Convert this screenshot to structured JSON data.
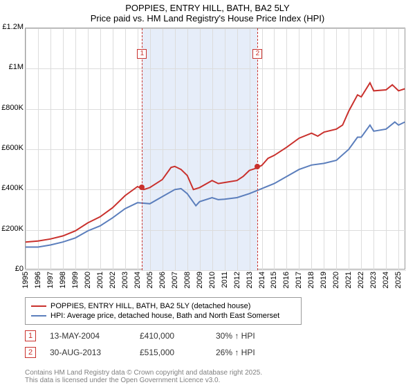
{
  "title": {
    "line1": "POPPIES, ENTRY HILL, BATH, BA2 5LY",
    "line2": "Price paid vs. HM Land Registry's House Price Index (HPI)"
  },
  "chart": {
    "type": "line",
    "x_range": [
      1995,
      2025.6
    ],
    "y_range": [
      0,
      1200000
    ],
    "y_ticks": [
      0,
      200000,
      400000,
      600000,
      800000,
      1000000,
      1200000
    ],
    "y_tick_labels": [
      "£0",
      "£200K",
      "£400K",
      "£600K",
      "£800K",
      "£1M",
      "£1.2M"
    ],
    "x_ticks": [
      1995,
      1996,
      1997,
      1998,
      1999,
      2000,
      2001,
      2002,
      2003,
      2004,
      2005,
      2006,
      2007,
      2008,
      2009,
      2010,
      2011,
      2012,
      2013,
      2014,
      2015,
      2016,
      2017,
      2018,
      2019,
      2020,
      2021,
      2022,
      2023,
      2024,
      2025
    ],
    "gridline_color": "#dcdcdc",
    "background_color": "#ffffff",
    "shade_color": "#e6edf9",
    "shade_span": [
      2004.37,
      2013.66
    ],
    "series": [
      {
        "name": "property",
        "color": "#c9302c",
        "width": 2,
        "points": [
          [
            1995,
            140000
          ],
          [
            1996,
            145000
          ],
          [
            1997,
            155000
          ],
          [
            1998,
            170000
          ],
          [
            1999,
            195000
          ],
          [
            2000,
            235000
          ],
          [
            2001,
            265000
          ],
          [
            2002,
            310000
          ],
          [
            2003,
            370000
          ],
          [
            2004,
            415000
          ],
          [
            2004.5,
            400000
          ],
          [
            2005,
            410000
          ],
          [
            2006,
            450000
          ],
          [
            2006.7,
            510000
          ],
          [
            2007,
            515000
          ],
          [
            2007.5,
            500000
          ],
          [
            2008,
            470000
          ],
          [
            2008.5,
            400000
          ],
          [
            2009,
            410000
          ],
          [
            2010,
            445000
          ],
          [
            2010.5,
            430000
          ],
          [
            2011,
            435000
          ],
          [
            2012,
            445000
          ],
          [
            2012.5,
            465000
          ],
          [
            2013,
            495000
          ],
          [
            2013.5,
            505000
          ],
          [
            2014,
            520000
          ],
          [
            2014.5,
            555000
          ],
          [
            2015,
            570000
          ],
          [
            2016,
            610000
          ],
          [
            2017,
            655000
          ],
          [
            2018,
            680000
          ],
          [
            2018.5,
            665000
          ],
          [
            2019,
            685000
          ],
          [
            2020,
            700000
          ],
          [
            2020.5,
            720000
          ],
          [
            2021,
            790000
          ],
          [
            2021.7,
            870000
          ],
          [
            2022,
            860000
          ],
          [
            2022.7,
            930000
          ],
          [
            2023,
            890000
          ],
          [
            2024,
            895000
          ],
          [
            2024.5,
            920000
          ],
          [
            2025,
            890000
          ],
          [
            2025.5,
            900000
          ]
        ]
      },
      {
        "name": "hpi",
        "color": "#5b7ebc",
        "width": 2,
        "points": [
          [
            1995,
            115000
          ],
          [
            1996,
            115000
          ],
          [
            1997,
            125000
          ],
          [
            1998,
            140000
          ],
          [
            1999,
            160000
          ],
          [
            2000,
            195000
          ],
          [
            2001,
            220000
          ],
          [
            2002,
            260000
          ],
          [
            2003,
            305000
          ],
          [
            2004,
            335000
          ],
          [
            2005,
            330000
          ],
          [
            2006,
            365000
          ],
          [
            2007,
            400000
          ],
          [
            2007.5,
            405000
          ],
          [
            2008,
            380000
          ],
          [
            2008.7,
            320000
          ],
          [
            2009,
            340000
          ],
          [
            2010,
            360000
          ],
          [
            2010.5,
            350000
          ],
          [
            2011,
            352000
          ],
          [
            2012,
            360000
          ],
          [
            2013,
            380000
          ],
          [
            2014,
            405000
          ],
          [
            2015,
            430000
          ],
          [
            2016,
            465000
          ],
          [
            2017,
            500000
          ],
          [
            2018,
            522000
          ],
          [
            2019,
            530000
          ],
          [
            2020,
            545000
          ],
          [
            2021,
            600000
          ],
          [
            2021.7,
            660000
          ],
          [
            2022,
            660000
          ],
          [
            2022.7,
            720000
          ],
          [
            2023,
            690000
          ],
          [
            2024,
            700000
          ],
          [
            2024.7,
            735000
          ],
          [
            2025,
            720000
          ],
          [
            2025.5,
            735000
          ]
        ]
      }
    ],
    "markers": [
      {
        "id": "1",
        "x": 2004.37,
        "y": 410000
      },
      {
        "id": "2",
        "x": 2013.66,
        "y": 515000
      }
    ]
  },
  "legend": {
    "rows": [
      {
        "color": "#c9302c",
        "label": "POPPIES, ENTRY HILL, BATH, BA2 5LY (detached house)"
      },
      {
        "color": "#5b7ebc",
        "label": "HPI: Average price, detached house, Bath and North East Somerset"
      }
    ]
  },
  "transactions": [
    {
      "id": "1",
      "date": "13-MAY-2004",
      "price": "£410,000",
      "pct": "30% ↑ HPI"
    },
    {
      "id": "2",
      "date": "30-AUG-2013",
      "price": "£515,000",
      "pct": "26% ↑ HPI"
    }
  ],
  "footer": {
    "line1": "Contains HM Land Registry data © Crown copyright and database right 2025.",
    "line2": "This data is licensed under the Open Government Licence v3.0."
  }
}
